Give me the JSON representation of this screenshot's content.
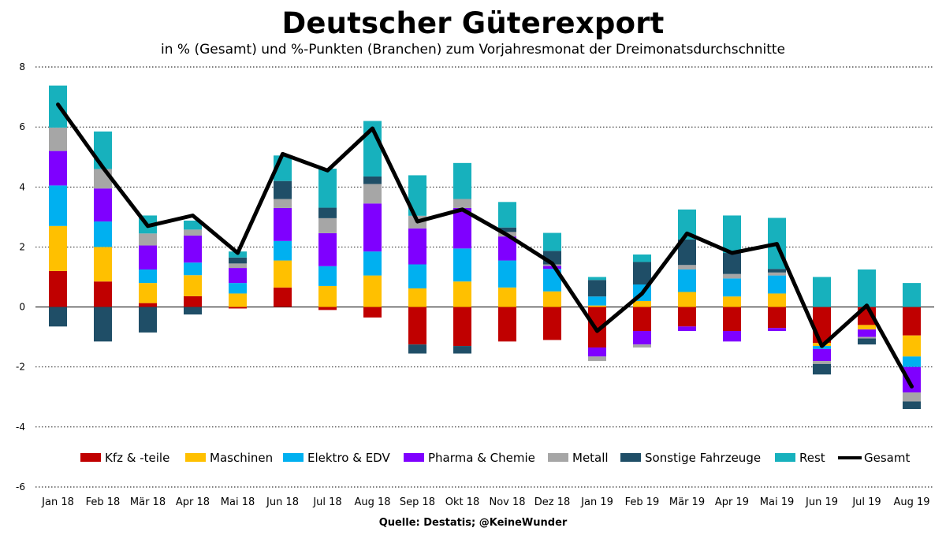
{
  "chart_data": {
    "type": "bar",
    "stacked": true,
    "title": "Deutscher Güterexport",
    "subtitle": "in % (Gesamt) und %-Punkten (Branchen) zum Vorjahresmonat der Dreimonatsdurchschnitte",
    "source": "Quelle: Destatis; @KeineWunder",
    "ylim": [
      -6,
      8
    ],
    "yticks": [
      -6,
      -4,
      -2,
      0,
      2,
      4,
      6,
      8
    ],
    "grid": true,
    "legend_position": "bottom",
    "categories": [
      "Jan 18",
      "Feb 18",
      "Mär 18",
      "Apr 18",
      "Mai 18",
      "Jun 18",
      "Jul 18",
      "Aug 18",
      "Sep 18",
      "Okt 18",
      "Nov 18",
      "Dez 18",
      "Jan 19",
      "Feb 19",
      "Mär 19",
      "Apr 19",
      "Mai 19",
      "Jun 19",
      "Jul 19",
      "Aug 19"
    ],
    "series": [
      {
        "name": "Kfz & -teile",
        "color": "#C00000",
        "values": [
          1.2,
          0.85,
          0.13,
          0.36,
          -0.05,
          0.65,
          -0.1,
          -0.35,
          -1.25,
          -1.3,
          -1.15,
          -1.1,
          -1.35,
          -0.8,
          -0.65,
          -0.8,
          -0.7,
          -1.2,
          -0.6,
          -0.95
        ]
      },
      {
        "name": "Maschinen",
        "color": "#FFC000",
        "values": [
          1.5,
          1.15,
          0.67,
          0.7,
          0.45,
          0.9,
          0.7,
          1.05,
          0.62,
          0.85,
          0.65,
          0.52,
          0.05,
          0.2,
          0.5,
          0.35,
          0.45,
          -0.1,
          -0.15,
          -0.7
        ]
      },
      {
        "name": "Elektro & EDV",
        "color": "#00B0F0",
        "values": [
          1.35,
          0.85,
          0.45,
          0.42,
          0.35,
          0.65,
          0.66,
          0.8,
          0.8,
          1.1,
          0.9,
          0.75,
          0.3,
          0.55,
          0.75,
          0.6,
          0.6,
          -0.1,
          0.0,
          -0.35
        ]
      },
      {
        "name": "Pharma & Chemie",
        "color": "#7F00FF",
        "values": [
          1.15,
          1.1,
          0.8,
          0.9,
          0.5,
          1.1,
          1.1,
          1.6,
          1.2,
          1.35,
          0.8,
          0.1,
          -0.3,
          -0.45,
          -0.15,
          -0.35,
          -0.1,
          -0.4,
          -0.25,
          -0.85
        ]
      },
      {
        "name": "Metall",
        "color": "#A6A6A6",
        "values": [
          0.78,
          0.65,
          0.4,
          0.2,
          0.15,
          0.3,
          0.5,
          0.65,
          0.42,
          0.3,
          0.15,
          0.05,
          -0.15,
          -0.1,
          0.15,
          0.15,
          0.1,
          -0.1,
          -0.05,
          -0.3
        ]
      },
      {
        "name": "Sonstige Fahrzeuge",
        "color": "#1F4E67",
        "values": [
          -0.65,
          -1.15,
          -0.85,
          -0.25,
          0.2,
          0.6,
          0.35,
          0.25,
          -0.3,
          -0.25,
          0.15,
          0.45,
          0.55,
          0.75,
          0.85,
          0.7,
          0.12,
          -0.35,
          -0.2,
          -0.25
        ]
      },
      {
        "name": "Rest",
        "color": "#17B1BD",
        "values": [
          1.4,
          1.25,
          0.6,
          0.3,
          0.2,
          0.85,
          1.3,
          1.85,
          1.35,
          1.2,
          0.85,
          0.6,
          0.1,
          0.25,
          1.0,
          1.25,
          1.7,
          1.0,
          1.25,
          0.8
        ]
      }
    ],
    "line": {
      "name": "Gesamt",
      "color": "#000000",
      "values": [
        6.75,
        4.65,
        2.7,
        3.05,
        1.8,
        5.1,
        4.55,
        5.95,
        2.85,
        3.25,
        2.4,
        1.45,
        -0.8,
        0.45,
        2.45,
        1.8,
        2.1,
        -1.3,
        0.05,
        -2.65
      ]
    }
  }
}
